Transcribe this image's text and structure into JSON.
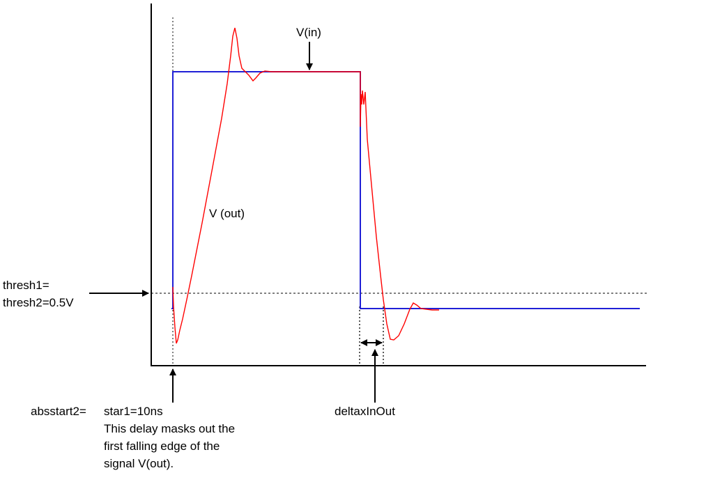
{
  "labels": {
    "vin": "V(in)",
    "vout": "V (out)",
    "thresh_line1": "thresh1=",
    "thresh_line2": "thresh2=0.5V",
    "absstart_prefix": "absstart2=",
    "absstart_value": "star1=10ns",
    "note_line1": "This delay masks out the",
    "note_line2": "first falling edge of the",
    "note_line3": "signal V(out).",
    "delta": "deltaxInOut"
  },
  "colors": {
    "vin": "#1f1fd6",
    "vout": "#ff0000",
    "axes": "#000000",
    "guide": "#000000"
  }
}
